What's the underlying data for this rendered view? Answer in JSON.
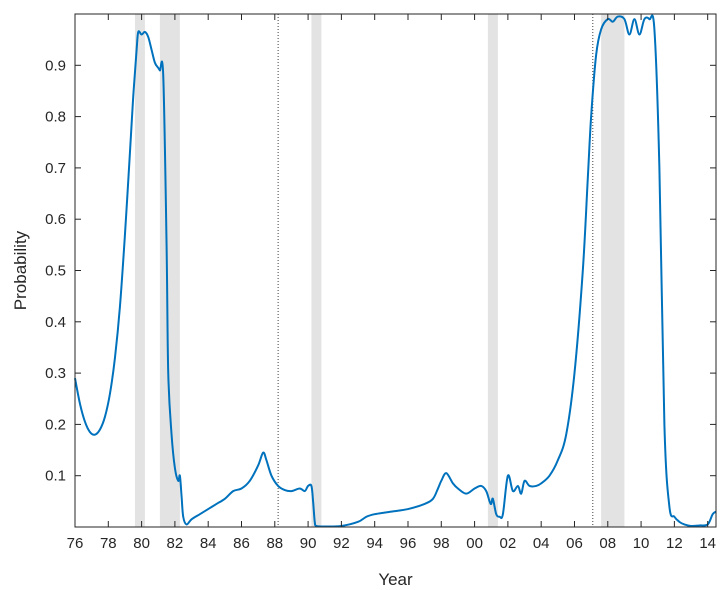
{
  "chart_data": {
    "type": "line",
    "title": "",
    "xlabel": "Year",
    "ylabel": "Probability",
    "xlim": [
      1976,
      2014.5
    ],
    "ylim": [
      0,
      1
    ],
    "xticks": [
      1976,
      1978,
      1980,
      1982,
      1984,
      1986,
      1988,
      1990,
      1992,
      1994,
      1996,
      1998,
      2000,
      2002,
      2004,
      2006,
      2008,
      2010,
      2012,
      2014
    ],
    "xtick_labels": [
      "76",
      "78",
      "80",
      "82",
      "84",
      "86",
      "88",
      "90",
      "92",
      "94",
      "96",
      "98",
      "00",
      "02",
      "04",
      "06",
      "08",
      "10",
      "12",
      "14"
    ],
    "yticks": [
      0.1,
      0.2,
      0.3,
      0.4,
      0.5,
      0.6,
      0.7,
      0.8,
      0.9
    ],
    "ytick_labels": [
      "0.1",
      "0.2",
      "0.3",
      "0.4",
      "0.5",
      "0.6",
      "0.7",
      "0.8",
      "0.9"
    ],
    "line_color": "#0072BD",
    "shade_color": "#e3e3e3",
    "recession_shading": [
      [
        1979.6,
        1980.2
      ],
      [
        1981.1,
        1982.3
      ],
      [
        1990.2,
        1990.8
      ],
      [
        2000.8,
        2001.4
      ],
      [
        2007.6,
        2009.0
      ]
    ],
    "vertical_dotted_lines": [
      1988.2,
      2007.1
    ],
    "series": [
      {
        "x": [
          1976.0,
          1976.3,
          1976.6,
          1976.9,
          1977.2,
          1977.5,
          1977.8,
          1978.1,
          1978.4,
          1978.7,
          1979.0,
          1979.3,
          1979.5,
          1979.7,
          1979.8,
          1980.0,
          1980.2,
          1980.4,
          1980.6,
          1980.8,
          1981.0,
          1981.1,
          1981.3,
          1981.5,
          1981.6,
          1981.8,
          1982.0,
          1982.2,
          1982.3,
          1982.4,
          1982.5,
          1982.7,
          1983.0,
          1983.5,
          1984.0,
          1984.5,
          1985.0,
          1985.5,
          1986.0,
          1986.5,
          1987.0,
          1987.3,
          1987.5,
          1987.8,
          1988.2,
          1988.6,
          1989.0,
          1989.5,
          1989.8,
          1990.0,
          1990.2,
          1990.3,
          1990.4,
          1990.5,
          1991.0,
          1992.0,
          1993.0,
          1993.5,
          1994.0,
          1995.0,
          1996.0,
          1997.0,
          1997.5,
          1997.8,
          1998.0,
          1998.3,
          1998.7,
          1999.0,
          1999.5,
          2000.0,
          2000.4,
          2000.7,
          2000.9,
          2001.0,
          2001.1,
          2001.3,
          2001.5,
          2001.7,
          2002.0,
          2002.3,
          2002.6,
          2002.8,
          2003.0,
          2003.3,
          2003.7,
          2004.0,
          2004.5,
          2005.0,
          2005.5,
          2006.0,
          2006.5,
          2006.8,
          2007.0,
          2007.3,
          2007.6,
          2008.0,
          2008.3,
          2008.6,
          2009.0,
          2009.3,
          2009.6,
          2009.9,
          2010.2,
          2010.5,
          2010.8,
          2011.1,
          2011.4,
          2011.7,
          2012.0,
          2012.3,
          2012.6,
          2013.0,
          2013.5,
          2014.0,
          2014.3,
          2014.5
        ],
        "y": [
          0.29,
          0.24,
          0.205,
          0.185,
          0.18,
          0.19,
          0.215,
          0.26,
          0.33,
          0.43,
          0.57,
          0.73,
          0.84,
          0.93,
          0.965,
          0.96,
          0.965,
          0.955,
          0.93,
          0.905,
          0.895,
          0.89,
          0.88,
          0.55,
          0.3,
          0.18,
          0.115,
          0.09,
          0.1,
          0.06,
          0.02,
          0.005,
          0.015,
          0.025,
          0.035,
          0.045,
          0.055,
          0.07,
          0.075,
          0.09,
          0.12,
          0.145,
          0.13,
          0.1,
          0.08,
          0.072,
          0.07,
          0.075,
          0.07,
          0.08,
          0.08,
          0.05,
          0.01,
          0.002,
          0.001,
          0.002,
          0.01,
          0.02,
          0.025,
          0.03,
          0.035,
          0.045,
          0.055,
          0.075,
          0.09,
          0.105,
          0.085,
          0.075,
          0.065,
          0.075,
          0.08,
          0.07,
          0.05,
          0.045,
          0.055,
          0.025,
          0.02,
          0.025,
          0.1,
          0.07,
          0.08,
          0.065,
          0.09,
          0.08,
          0.08,
          0.085,
          0.1,
          0.13,
          0.18,
          0.3,
          0.5,
          0.68,
          0.8,
          0.92,
          0.97,
          0.99,
          0.985,
          0.995,
          0.99,
          0.96,
          0.99,
          0.96,
          0.99,
          0.99,
          0.97,
          0.7,
          0.2,
          0.04,
          0.02,
          0.01,
          0.005,
          0.002,
          0.003,
          0.005,
          0.025,
          0.03
        ]
      }
    ]
  }
}
